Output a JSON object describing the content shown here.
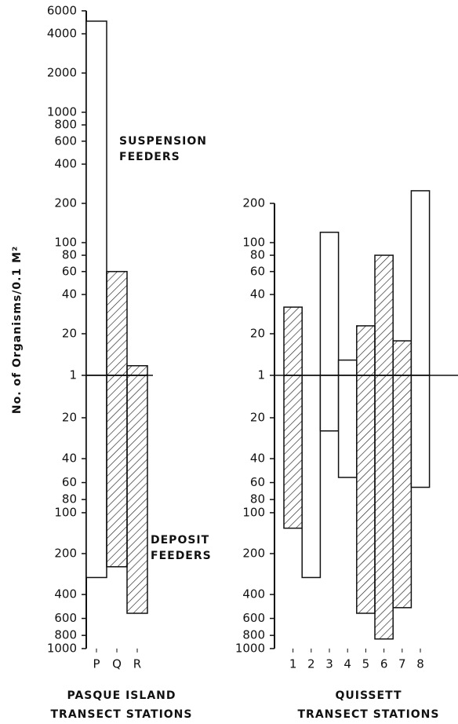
{
  "chart_data": [
    {
      "type": "bar",
      "ylabel": "No. of Organisms/0.1 M²",
      "x_label": [
        "PASQUE ISLAND",
        "TRANSECT STATIONS"
      ],
      "annotations": [
        [
          "SUSPENSION",
          "FEEDERS"
        ],
        [
          "DEPOSIT",
          "FEEDERS"
        ]
      ],
      "categories": [
        "P",
        "Q",
        "R"
      ],
      "suspension": [
        5000,
        60,
        2
      ],
      "deposit": [
        300,
        250,
        550
      ],
      "hatched": [
        false,
        true,
        true
      ],
      "ylim": [
        1,
        6000
      ],
      "yticks": [
        1,
        20,
        40,
        60,
        80,
        100,
        200,
        400,
        600,
        800,
        1000,
        2000,
        4000,
        6000
      ],
      "lower_ylim": [
        1,
        1000
      ],
      "lower_yticks": [
        20,
        40,
        60,
        80,
        100,
        200,
        400,
        600,
        800,
        1000
      ],
      "log_scale": true
    },
    {
      "type": "bar",
      "x_label": [
        "QUISSETT",
        "TRANSECT STATIONS"
      ],
      "categories": [
        "1",
        "2",
        "3",
        "4",
        "5",
        "6",
        "7",
        "8"
      ],
      "suspension": [
        32,
        null,
        120,
        3,
        23,
        80,
        12,
        250
      ],
      "deposit": [
        130,
        300,
        25,
        55,
        550,
        850,
        500,
        65
      ],
      "hatched": [
        true,
        false,
        false,
        false,
        true,
        true,
        true,
        false
      ],
      "ylim": [
        1,
        200
      ],
      "yticks": [
        1,
        20,
        40,
        60,
        80,
        100,
        200
      ],
      "lower_ylim": [
        1,
        1000
      ],
      "lower_yticks": [
        20,
        40,
        60,
        80,
        100,
        200,
        400,
        600,
        800,
        1000
      ],
      "log_scale": true
    }
  ]
}
